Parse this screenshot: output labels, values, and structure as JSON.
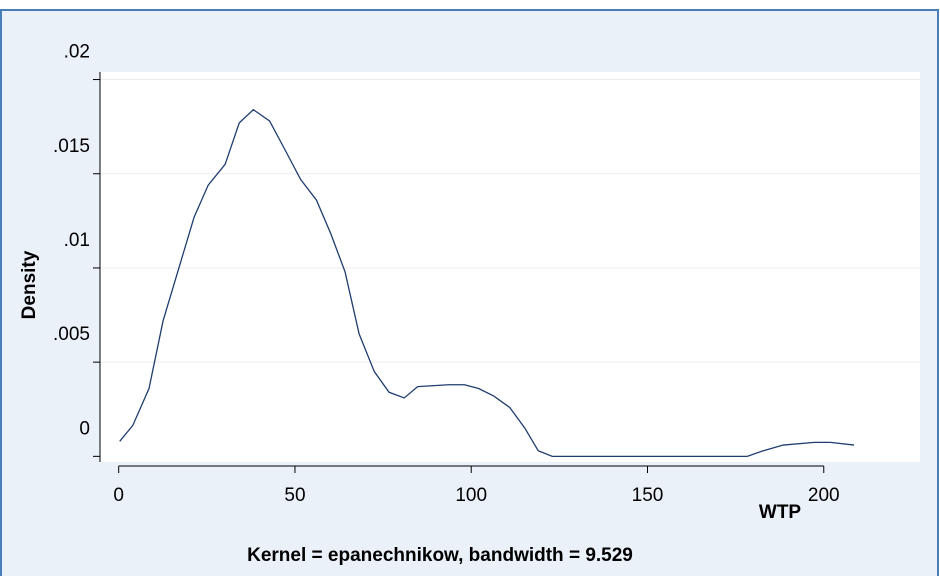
{
  "chart_data": {
    "type": "line",
    "y_label": "Density",
    "x_label": "WTP",
    "note": "Kernel = epanechnikow, bandwidth = 9.529",
    "x": [
      0.3,
      4,
      8.6,
      12.6,
      17.4,
      21.4,
      25.4,
      30.2,
      34.2,
      38.2,
      42.8,
      47.1,
      51.6,
      56.1,
      60.2,
      64.2,
      68.2,
      72.5,
      76.7,
      81,
      84.8,
      93.6,
      98.1,
      102.1,
      106.4,
      110.9,
      115.2,
      119,
      123,
      178.3,
      182.9,
      188.5,
      197.3,
      201.9,
      208.6
    ],
    "values": [
      0.0008,
      0.00164,
      0.0036,
      0.0072,
      0.0102,
      0.0127,
      0.0144,
      0.0155,
      0.0177,
      0.0184,
      0.0178,
      0.0163,
      0.0147,
      0.0136,
      0.0118,
      0.0098,
      0.0065,
      0.0045,
      0.0034,
      0.0031,
      0.0037,
      0.0038,
      0.0038,
      0.0036,
      0.0032,
      0.0026,
      0.0015,
      0.0003,
      0,
      0,
      0.0003,
      0.0006,
      0.00074,
      0.00074,
      0.0006
    ],
    "color": "#1f3d6e",
    "xlim": [
      -5.3,
      227.3
    ],
    "ylim": [
      -0.0003,
      0.0204
    ],
    "xticks": [
      0,
      50,
      100,
      150,
      200
    ],
    "yticks": [
      0,
      {
        "value": 0.005,
        "label": ".005"
      },
      {
        "value": 0.01,
        "label": ".01"
      },
      {
        "value": 0.015,
        "label": ".015"
      },
      {
        "value": 0.02,
        "label": ".02"
      }
    ],
    "grid": true
  }
}
